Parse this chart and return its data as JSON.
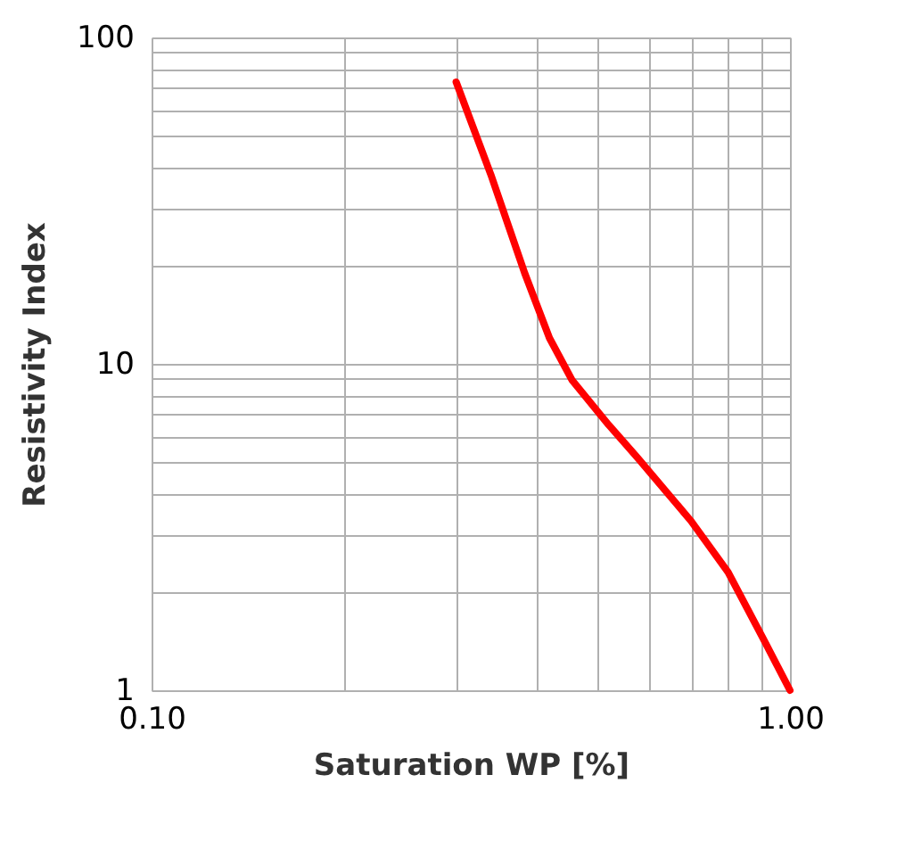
{
  "chart_data": {
    "type": "line",
    "xlabel": "Saturation WP [%]",
    "ylabel": "Resistivity Index",
    "log": "xy",
    "grid": true,
    "marker": "none",
    "line_style": "solid",
    "x": [
      0.3,
      0.34,
      0.384,
      0.42,
      0.456,
      0.52,
      0.58,
      0.7,
      0.8,
      0.908,
      1.0
    ],
    "series": [
      {
        "color": "#ff0000",
        "values": [
          73,
          38,
          19,
          12,
          8.9,
          6.5,
          5.1,
          3.3,
          2.3,
          1.44,
          1.0
        ]
      }
    ],
    "xlim": [
      0.1,
      1.0
    ],
    "ylim": [
      1,
      100
    ],
    "xticks": [
      {
        "value": 0.1,
        "label": "0.10"
      },
      {
        "value": 0.2,
        "label": null
      },
      {
        "value": 0.3,
        "label": null
      },
      {
        "value": 0.4,
        "label": null
      },
      {
        "value": 0.5,
        "label": null
      },
      {
        "value": 0.6,
        "label": null
      },
      {
        "value": 0.7,
        "label": null
      },
      {
        "value": 0.8,
        "label": null
      },
      {
        "value": 0.9,
        "label": null
      },
      {
        "value": 1.0,
        "label": "1.00"
      }
    ],
    "yticks": [
      1,
      {
        "value": 2,
        "label": null
      },
      {
        "value": 3,
        "label": null
      },
      {
        "value": 4,
        "label": null
      },
      {
        "value": 5,
        "label": null
      },
      {
        "value": 6,
        "label": null
      },
      {
        "value": 7,
        "label": null
      },
      {
        "value": 8,
        "label": null
      },
      {
        "value": 9,
        "label": null
      },
      10,
      {
        "value": 20,
        "label": null
      },
      {
        "value": 30,
        "label": null
      },
      {
        "value": 40,
        "label": null
      },
      {
        "value": 50,
        "label": null
      },
      {
        "value": 60,
        "label": null
      },
      {
        "value": 70,
        "label": null
      },
      {
        "value": 80,
        "label": null
      },
      {
        "value": 90,
        "label": null
      },
      100
    ]
  }
}
